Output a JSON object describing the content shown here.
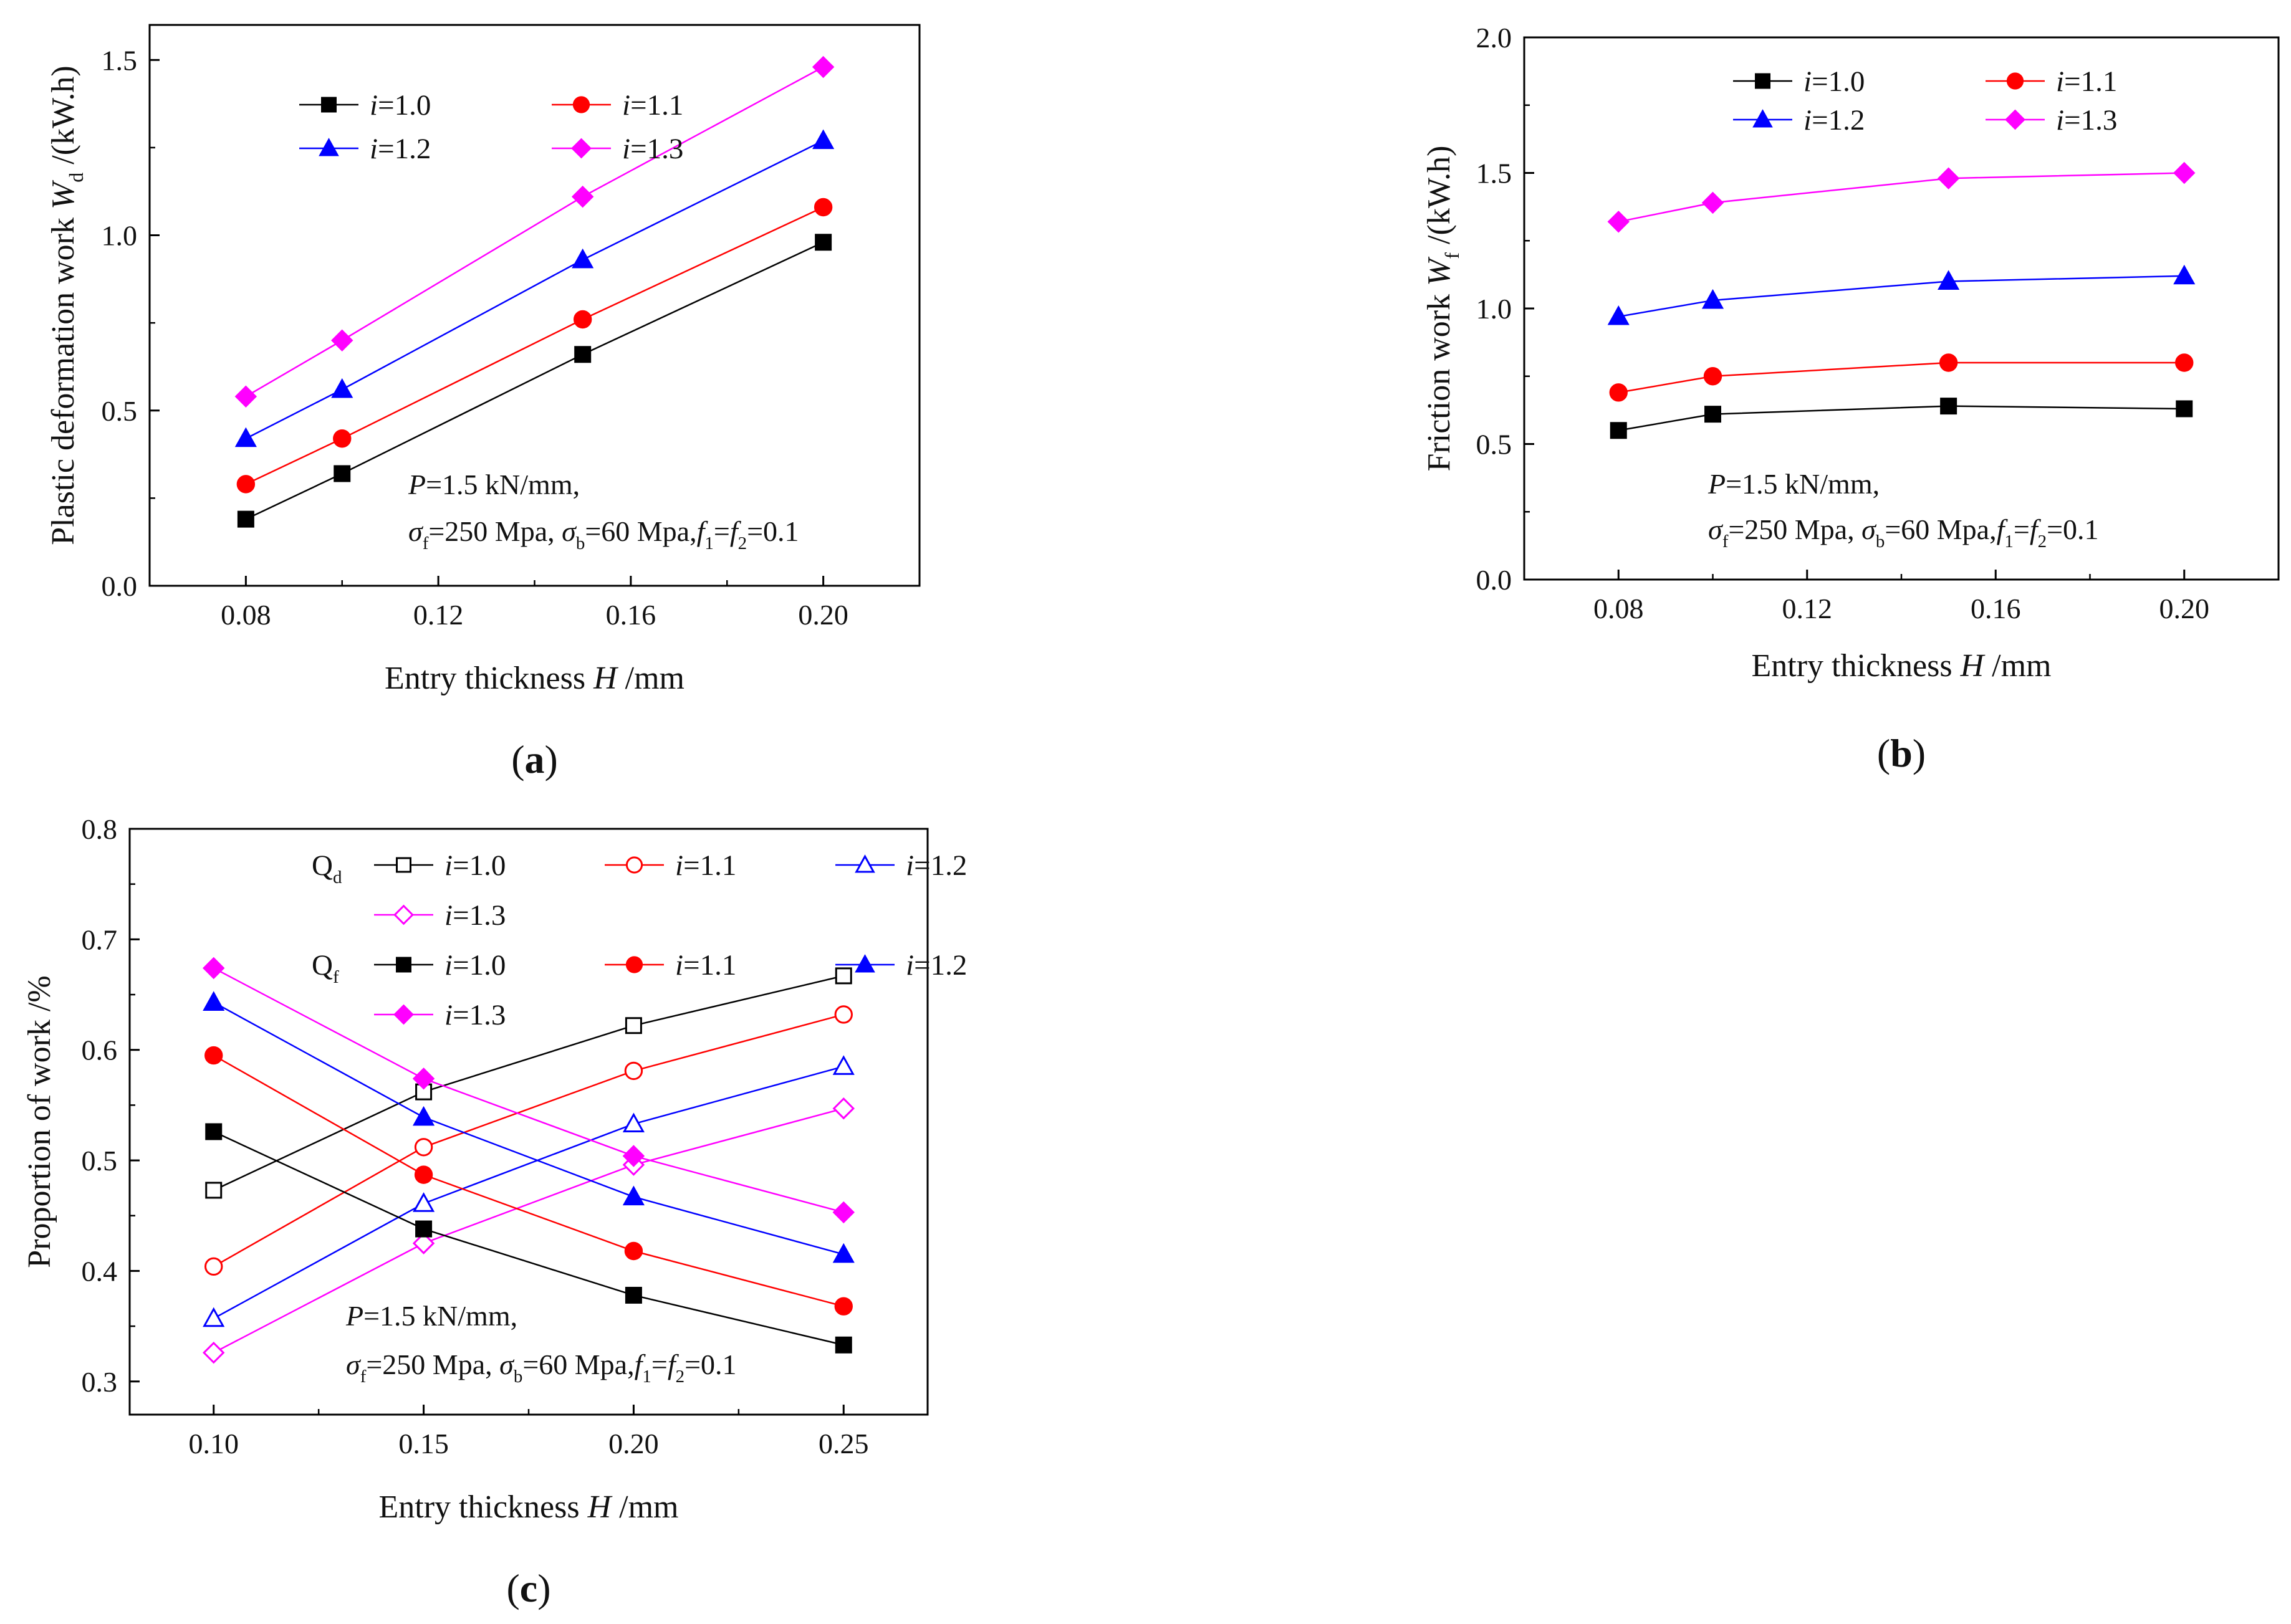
{
  "chart_data": [
    {
      "id": "a",
      "type": "line",
      "caption": "(a)",
      "ylabel": {
        "main": "Plastic deformation work ",
        "var": "W",
        "sub": "d",
        "tail": " /(kW.h)"
      },
      "xlabel": {
        "main": "Entry thickness ",
        "var": "H",
        "tail": " /mm"
      },
      "xlim": [
        0.06,
        0.22
      ],
      "ylim": [
        0.0,
        1.6
      ],
      "xticks": [
        "0.08",
        "0.12",
        "0.16",
        "0.20"
      ],
      "xtick_values": [
        0.08,
        0.12,
        0.16,
        0.2
      ],
      "yticks": [
        "0.0",
        "0.5",
        "1.0",
        "1.5"
      ],
      "ytick_values": [
        0.0,
        0.5,
        1.0,
        1.5
      ],
      "x": [
        0.08,
        0.1,
        0.15,
        0.2
      ],
      "series": [
        {
          "name": "i=1.0",
          "label_var": "i",
          "label_val": "=1.0",
          "color": "#000000",
          "marker": "square",
          "values": [
            0.19,
            0.32,
            0.66,
            0.98
          ]
        },
        {
          "name": "i=1.1",
          "label_var": "i",
          "label_val": "=1.1",
          "color": "#ff0000",
          "marker": "circle",
          "values": [
            0.29,
            0.42,
            0.76,
            1.08
          ]
        },
        {
          "name": "i=1.2",
          "label_var": "i",
          "label_val": "=1.2",
          "color": "#0000ff",
          "marker": "triangle",
          "values": [
            0.42,
            0.56,
            0.93,
            1.27
          ]
        },
        {
          "name": "i=1.3",
          "label_var": "i",
          "label_val": "=1.3",
          "color": "#ff00ff",
          "marker": "diamond",
          "values": [
            0.54,
            0.7,
            1.11,
            1.48
          ]
        }
      ],
      "annotation": {
        "line1": {
          "var": "P",
          "text": "=1.5 kN/mm,"
        },
        "line2": {
          "s1": "σ",
          "s1sub": "f",
          "t1": "=250 Mpa, ",
          "s2": "σ",
          "s2sub": "b",
          "t2": "=60 Mpa,",
          "f1": "f",
          "f1sub": "1",
          "eq": "=",
          "f2": "f",
          "f2sub": "2",
          "t3": "=0.1"
        }
      }
    },
    {
      "id": "b",
      "type": "line",
      "caption": "(b)",
      "ylabel": {
        "main": "Friction work ",
        "var": "W",
        "sub": "f",
        "tail": " /(kW.h)"
      },
      "xlabel": {
        "main": "Entry thickness ",
        "var": "H",
        "tail": " /mm"
      },
      "xlim": [
        0.06,
        0.22
      ],
      "ylim": [
        0.0,
        2.0
      ],
      "xticks": [
        "0.08",
        "0.12",
        "0.16",
        "0.20"
      ],
      "xtick_values": [
        0.08,
        0.12,
        0.16,
        0.2
      ],
      "yticks": [
        "0.0",
        "0.5",
        "1.0",
        "1.5",
        "2.0"
      ],
      "ytick_values": [
        0.0,
        0.5,
        1.0,
        1.5,
        2.0
      ],
      "x": [
        0.08,
        0.1,
        0.15,
        0.2
      ],
      "series": [
        {
          "name": "i=1.0",
          "label_var": "i",
          "label_val": "=1.0",
          "color": "#000000",
          "marker": "square",
          "values": [
            0.55,
            0.61,
            0.64,
            0.63
          ]
        },
        {
          "name": "i=1.1",
          "label_var": "i",
          "label_val": "=1.1",
          "color": "#ff0000",
          "marker": "circle",
          "values": [
            0.69,
            0.75,
            0.8,
            0.8
          ]
        },
        {
          "name": "i=1.2",
          "label_var": "i",
          "label_val": "=1.2",
          "color": "#0000ff",
          "marker": "triangle",
          "values": [
            0.97,
            1.03,
            1.1,
            1.12
          ]
        },
        {
          "name": "i=1.3",
          "label_var": "i",
          "label_val": "=1.3",
          "color": "#ff00ff",
          "marker": "diamond",
          "values": [
            1.32,
            1.39,
            1.48,
            1.5
          ]
        }
      ],
      "annotation": {
        "line1": {
          "var": "P",
          "text": "=1.5 kN/mm,"
        },
        "line2": {
          "s1": "σ",
          "s1sub": "f",
          "t1": "=250 Mpa, ",
          "s2": "σ",
          "s2sub": "b",
          "t2": "=60 Mpa,",
          "f1": "f",
          "f1sub": "1",
          "eq": "=",
          "f2": "f",
          "f2sub": "2",
          "t3": "=0.1"
        }
      }
    },
    {
      "id": "c",
      "type": "line",
      "caption": "(c)",
      "ylabel": {
        "main": "Proportion of work /%"
      },
      "xlabel": {
        "main": "Entry thickness ",
        "var": "H",
        "tail": " /mm"
      },
      "xlim": [
        0.08,
        0.27
      ],
      "ylim": [
        0.27,
        0.8
      ],
      "xticks": [
        "0.10",
        "0.15",
        "0.20",
        "0.25"
      ],
      "xtick_values": [
        0.1,
        0.15,
        0.2,
        0.25
      ],
      "yticks": [
        "0.3",
        "0.4",
        "0.5",
        "0.6",
        "0.7",
        "0.8"
      ],
      "ytick_values": [
        0.3,
        0.4,
        0.5,
        0.6,
        0.7,
        0.8
      ],
      "x": [
        0.1,
        0.15,
        0.2,
        0.25
      ],
      "group_labels": {
        "qd": {
          "base": "Q",
          "sub": "d"
        },
        "qf": {
          "base": "Q",
          "sub": "f"
        }
      },
      "series": [
        {
          "name": "Qd i=1.0",
          "group": "qd",
          "label_var": "i",
          "label_val": "=1.0",
          "color": "#000000",
          "marker": "square",
          "filled": false,
          "values": [
            0.473,
            0.562,
            0.622,
            0.667
          ]
        },
        {
          "name": "Qd i=1.1",
          "group": "qd",
          "label_var": "i",
          "label_val": "=1.1",
          "color": "#ff0000",
          "marker": "circle",
          "filled": false,
          "values": [
            0.404,
            0.512,
            0.581,
            0.632
          ]
        },
        {
          "name": "Qd i=1.2",
          "group": "qd",
          "label_var": "i",
          "label_val": "=1.2",
          "color": "#0000ff",
          "marker": "triangle",
          "filled": false,
          "values": [
            0.357,
            0.461,
            0.533,
            0.585
          ]
        },
        {
          "name": "Qd i=1.3",
          "group": "qd",
          "label_var": "i",
          "label_val": "=1.3",
          "color": "#ff00ff",
          "marker": "diamond",
          "filled": false,
          "values": [
            0.326,
            0.425,
            0.496,
            0.547
          ]
        },
        {
          "name": "Qf i=1.0",
          "group": "qf",
          "label_var": "i",
          "label_val": "=1.0",
          "color": "#000000",
          "marker": "square",
          "filled": true,
          "values": [
            0.526,
            0.438,
            0.378,
            0.333
          ]
        },
        {
          "name": "Qf i=1.1",
          "group": "qf",
          "label_var": "i",
          "label_val": "=1.1",
          "color": "#ff0000",
          "marker": "circle",
          "filled": true,
          "values": [
            0.595,
            0.487,
            0.418,
            0.368
          ]
        },
        {
          "name": "Qf i=1.2",
          "group": "qf",
          "label_var": "i",
          "label_val": "=1.2",
          "color": "#0000ff",
          "marker": "triangle",
          "filled": true,
          "values": [
            0.643,
            0.539,
            0.467,
            0.415
          ]
        },
        {
          "name": "Qf i=1.3",
          "group": "qf",
          "label_var": "i",
          "label_val": "=1.3",
          "color": "#ff00ff",
          "marker": "diamond",
          "filled": true,
          "values": [
            0.674,
            0.574,
            0.504,
            0.453
          ]
        }
      ],
      "annotation": {
        "line1": {
          "var": "P",
          "text": "=1.5 kN/mm,"
        },
        "line2": {
          "s1": "σ",
          "s1sub": "f",
          "t1": "=250 Mpa, ",
          "s2": "σ",
          "s2sub": "b",
          "t2": "=60 Mpa,",
          "f1": "f",
          "f1sub": "1",
          "eq": "=",
          "f2": "f",
          "f2sub": "2",
          "t3": "=0.1"
        }
      }
    }
  ]
}
